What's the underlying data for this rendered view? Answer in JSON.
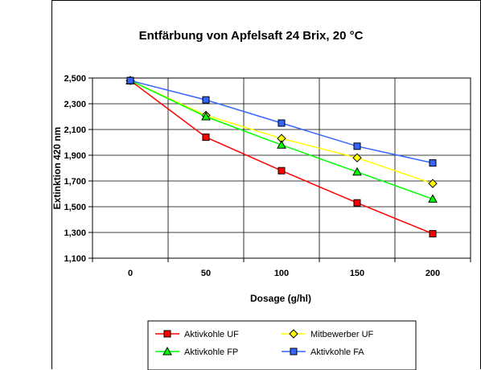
{
  "chart_data": {
    "type": "line",
    "title": "Entfärbung von Apfelsaft 24 Brix, 20 °C",
    "xlabel": "Dosage (g/hl)",
    "ylabel": "Extinktion 420 nm",
    "x": [
      0,
      50,
      100,
      150,
      200
    ],
    "x_ticks": [
      "0",
      "50",
      "100",
      "150",
      "200"
    ],
    "ylim": [
      1.1,
      2.5
    ],
    "y_ticks": [
      "1,100",
      "1,300",
      "1,500",
      "1,700",
      "1,900",
      "2,100",
      "2,300",
      "2,500"
    ],
    "grid": true,
    "legend_position": "bottom",
    "series": [
      {
        "name": "Aktivkohle UF",
        "color": "#ff0000",
        "marker": "square",
        "values": [
          2.48,
          2.04,
          1.78,
          1.53,
          1.29
        ]
      },
      {
        "name": "Mitbewerber UF",
        "color": "#ffff00",
        "marker": "diamond",
        "values": [
          2.48,
          2.21,
          2.03,
          1.88,
          1.68
        ]
      },
      {
        "name": "Aktivkohle FP",
        "color": "#00ff00",
        "marker": "triangle",
        "values": [
          2.48,
          2.2,
          1.98,
          1.77,
          1.56
        ]
      },
      {
        "name": "Aktivkohle FA",
        "color": "#3366ff",
        "marker": "square",
        "values": [
          2.48,
          2.33,
          2.15,
          1.97,
          1.84
        ]
      }
    ]
  }
}
